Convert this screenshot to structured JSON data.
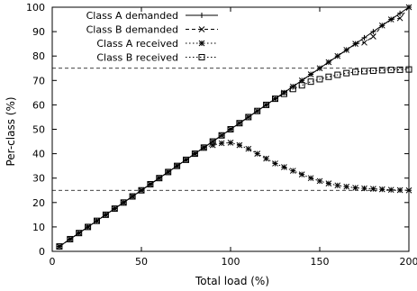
{
  "chart_data": {
    "type": "line",
    "xlabel": "Total load (%)",
    "ylabel": "Per-class (%)",
    "xlim": [
      0,
      200
    ],
    "ylim": [
      0,
      100
    ],
    "xticks": [
      0,
      50,
      100,
      150,
      200
    ],
    "yticks": [
      0,
      10,
      20,
      30,
      40,
      50,
      60,
      70,
      80,
      90,
      100
    ],
    "grid": false,
    "legend_position": "top-left",
    "series": [
      {
        "name": "Class A demanded",
        "marker": "plus",
        "dash": "solid",
        "x": [
          4,
          10,
          15,
          20,
          25,
          30,
          35,
          40,
          45,
          50,
          55,
          60,
          65,
          70,
          75,
          80,
          85,
          90,
          95,
          100,
          105,
          110,
          115,
          120,
          125,
          130,
          135,
          140,
          145,
          150,
          155,
          160,
          165,
          170,
          175,
          180,
          185,
          190,
          195,
          200
        ],
        "y": [
          2,
          5,
          7.5,
          10,
          12.5,
          15,
          17.5,
          20,
          22.5,
          25,
          27.5,
          30,
          32.5,
          35,
          37.5,
          40,
          42.5,
          45,
          47.5,
          50,
          52.5,
          55,
          57.5,
          60,
          62.5,
          65,
          67.5,
          70,
          72.5,
          75,
          77.5,
          80,
          82.5,
          85,
          87.5,
          90,
          92.5,
          95,
          97.5,
          100
        ]
      },
      {
        "name": "Class B demanded",
        "marker": "x",
        "dash": "dashed",
        "x": [
          4,
          10,
          15,
          20,
          25,
          30,
          35,
          40,
          45,
          50,
          55,
          60,
          65,
          70,
          75,
          80,
          85,
          90,
          95,
          100,
          105,
          110,
          115,
          120,
          125,
          130,
          135,
          140,
          145,
          150,
          155,
          160,
          165,
          170,
          175,
          180,
          185,
          190,
          195,
          200
        ],
        "y": [
          2,
          5,
          7.5,
          10,
          12.5,
          15,
          17.5,
          20,
          22.5,
          25,
          27.5,
          30,
          32.5,
          35,
          37.5,
          40,
          42.5,
          45,
          47.5,
          50,
          52.5,
          55,
          57.5,
          60,
          62.5,
          65,
          67.5,
          70,
          72.5,
          75,
          77.5,
          80,
          82.5,
          85,
          85.5,
          88,
          92.5,
          95,
          95.5,
          100
        ]
      },
      {
        "name": "Class A received",
        "marker": "star",
        "dash": "dotted",
        "x": [
          4,
          10,
          15,
          20,
          25,
          30,
          35,
          40,
          45,
          50,
          55,
          60,
          65,
          70,
          75,
          80,
          85,
          90,
          95,
          100,
          105,
          110,
          115,
          120,
          125,
          130,
          135,
          140,
          145,
          150,
          155,
          160,
          165,
          170,
          175,
          180,
          185,
          190,
          195,
          200
        ],
        "y": [
          2,
          5,
          7.5,
          10,
          12.5,
          15,
          17.5,
          20,
          22.5,
          25,
          27.5,
          30,
          32.5,
          35,
          37.5,
          40,
          42.5,
          43.5,
          44.3,
          44.5,
          43.5,
          42,
          40,
          38,
          36,
          34.5,
          33,
          31.5,
          30,
          28.8,
          27.8,
          27,
          26.5,
          26,
          25.8,
          25.6,
          25.4,
          25.2,
          25.1,
          25
        ]
      },
      {
        "name": "Class B received",
        "marker": "square",
        "dash": "dotted",
        "x": [
          4,
          10,
          15,
          20,
          25,
          30,
          35,
          40,
          45,
          50,
          55,
          60,
          65,
          70,
          75,
          80,
          85,
          90,
          95,
          100,
          105,
          110,
          115,
          120,
          125,
          130,
          135,
          140,
          145,
          150,
          155,
          160,
          165,
          170,
          175,
          180,
          185,
          190,
          195,
          200
        ],
        "y": [
          2,
          5,
          7.5,
          10,
          12.5,
          15,
          17.5,
          20,
          22.5,
          25,
          27.5,
          30,
          32.5,
          35,
          37.5,
          40,
          42.5,
          45,
          47.5,
          50,
          52.5,
          55,
          57.5,
          60,
          62.5,
          64.5,
          66.5,
          68,
          69.5,
          70.5,
          71.5,
          72.3,
          73,
          73.5,
          73.8,
          74,
          74.2,
          74.3,
          74.4,
          74.5
        ]
      }
    ],
    "reference_lines": [
      {
        "y": 75,
        "dash": "dashed"
      },
      {
        "y": 25,
        "dash": "dashed"
      }
    ]
  }
}
